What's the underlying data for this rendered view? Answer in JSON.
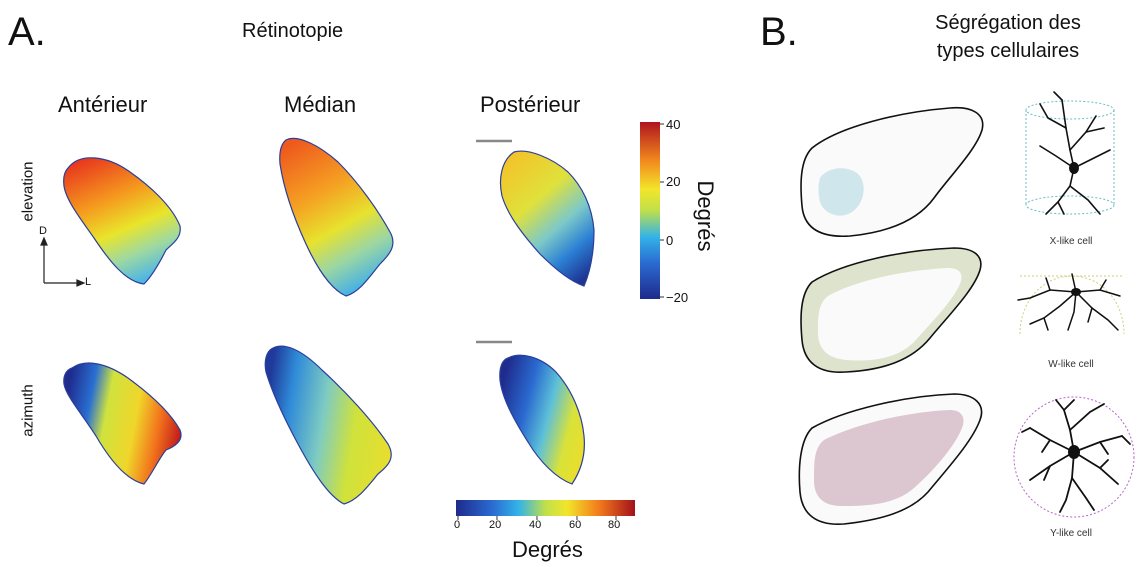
{
  "panel_a": {
    "letter": "A.",
    "title": "Rétinotopie",
    "columns": [
      "Antérieur",
      "Médian",
      "Postérieur"
    ],
    "rows": [
      "elevation",
      "azimuth"
    ],
    "axis_d": "D",
    "axis_l": "L",
    "vertical_colorbar": {
      "title": "Degrés",
      "ticks": [
        "40",
        "20",
        "0",
        "−20"
      ]
    },
    "horizontal_colorbar": {
      "title": "Degrés",
      "ticks": [
        "0",
        "20",
        "40",
        "60",
        "80"
      ]
    }
  },
  "panel_b": {
    "letter": "B.",
    "title_line1": "Ségrégation des",
    "title_line2": "types cellulaires",
    "cells": [
      "X-like cell",
      "W-like cell",
      "Y-like cell"
    ],
    "colors": {
      "x_region": "#cfe6ec",
      "w_region": "#dde3cc",
      "y_region": "#dcc6cf"
    }
  }
}
